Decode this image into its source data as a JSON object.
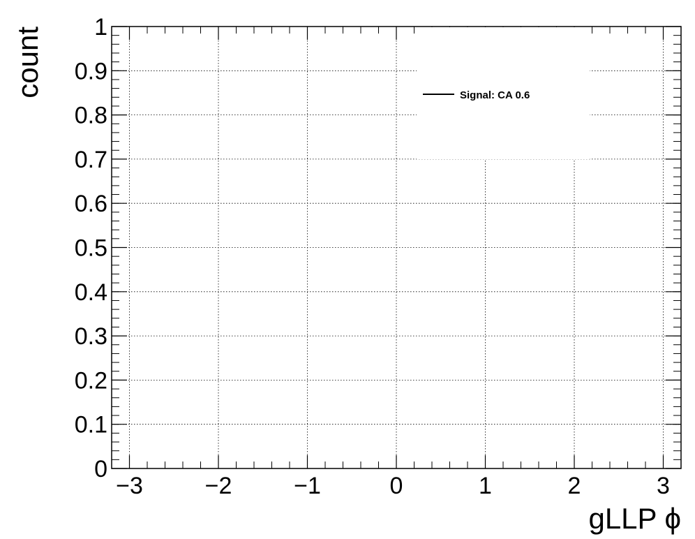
{
  "chart_data": {
    "type": "line",
    "title": "",
    "xlabel": "gLLP ϕ",
    "ylabel": "count",
    "xlim": [
      -3.2,
      3.2
    ],
    "ylim": [
      0,
      1
    ],
    "grid": true,
    "x_ticks": [
      {
        "value": -3,
        "label": "−3"
      },
      {
        "value": -2,
        "label": "−2"
      },
      {
        "value": -1,
        "label": "−1"
      },
      {
        "value": 0,
        "label": "0"
      },
      {
        "value": 1,
        "label": "1"
      },
      {
        "value": 2,
        "label": "2"
      },
      {
        "value": 3,
        "label": "3"
      }
    ],
    "y_ticks": [
      {
        "value": 0,
        "label": "0"
      },
      {
        "value": 0.1,
        "label": "0.1"
      },
      {
        "value": 0.2,
        "label": "0.2"
      },
      {
        "value": 0.3,
        "label": "0.3"
      },
      {
        "value": 0.4,
        "label": "0.4"
      },
      {
        "value": 0.5,
        "label": "0.5"
      },
      {
        "value": 0.6,
        "label": "0.6"
      },
      {
        "value": 0.7,
        "label": "0.7"
      },
      {
        "value": 0.8,
        "label": "0.8"
      },
      {
        "value": 0.9,
        "label": "0.9"
      },
      {
        "value": 1,
        "label": "1"
      }
    ],
    "legend_position": "top-right",
    "series": [
      {
        "name": "Signal: CA 0.6",
        "color": "#000000",
        "x": [],
        "y": []
      }
    ]
  }
}
